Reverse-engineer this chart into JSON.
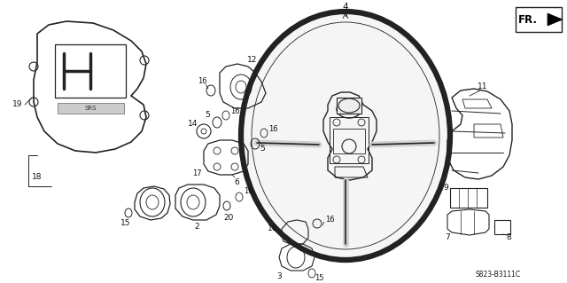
{
  "background_color": "#ffffff",
  "diagram_code": "S823-B3111C",
  "line_color": "#222222",
  "text_color": "#111111",
  "figsize": [
    6.4,
    3.19
  ],
  "dpi": 100
}
